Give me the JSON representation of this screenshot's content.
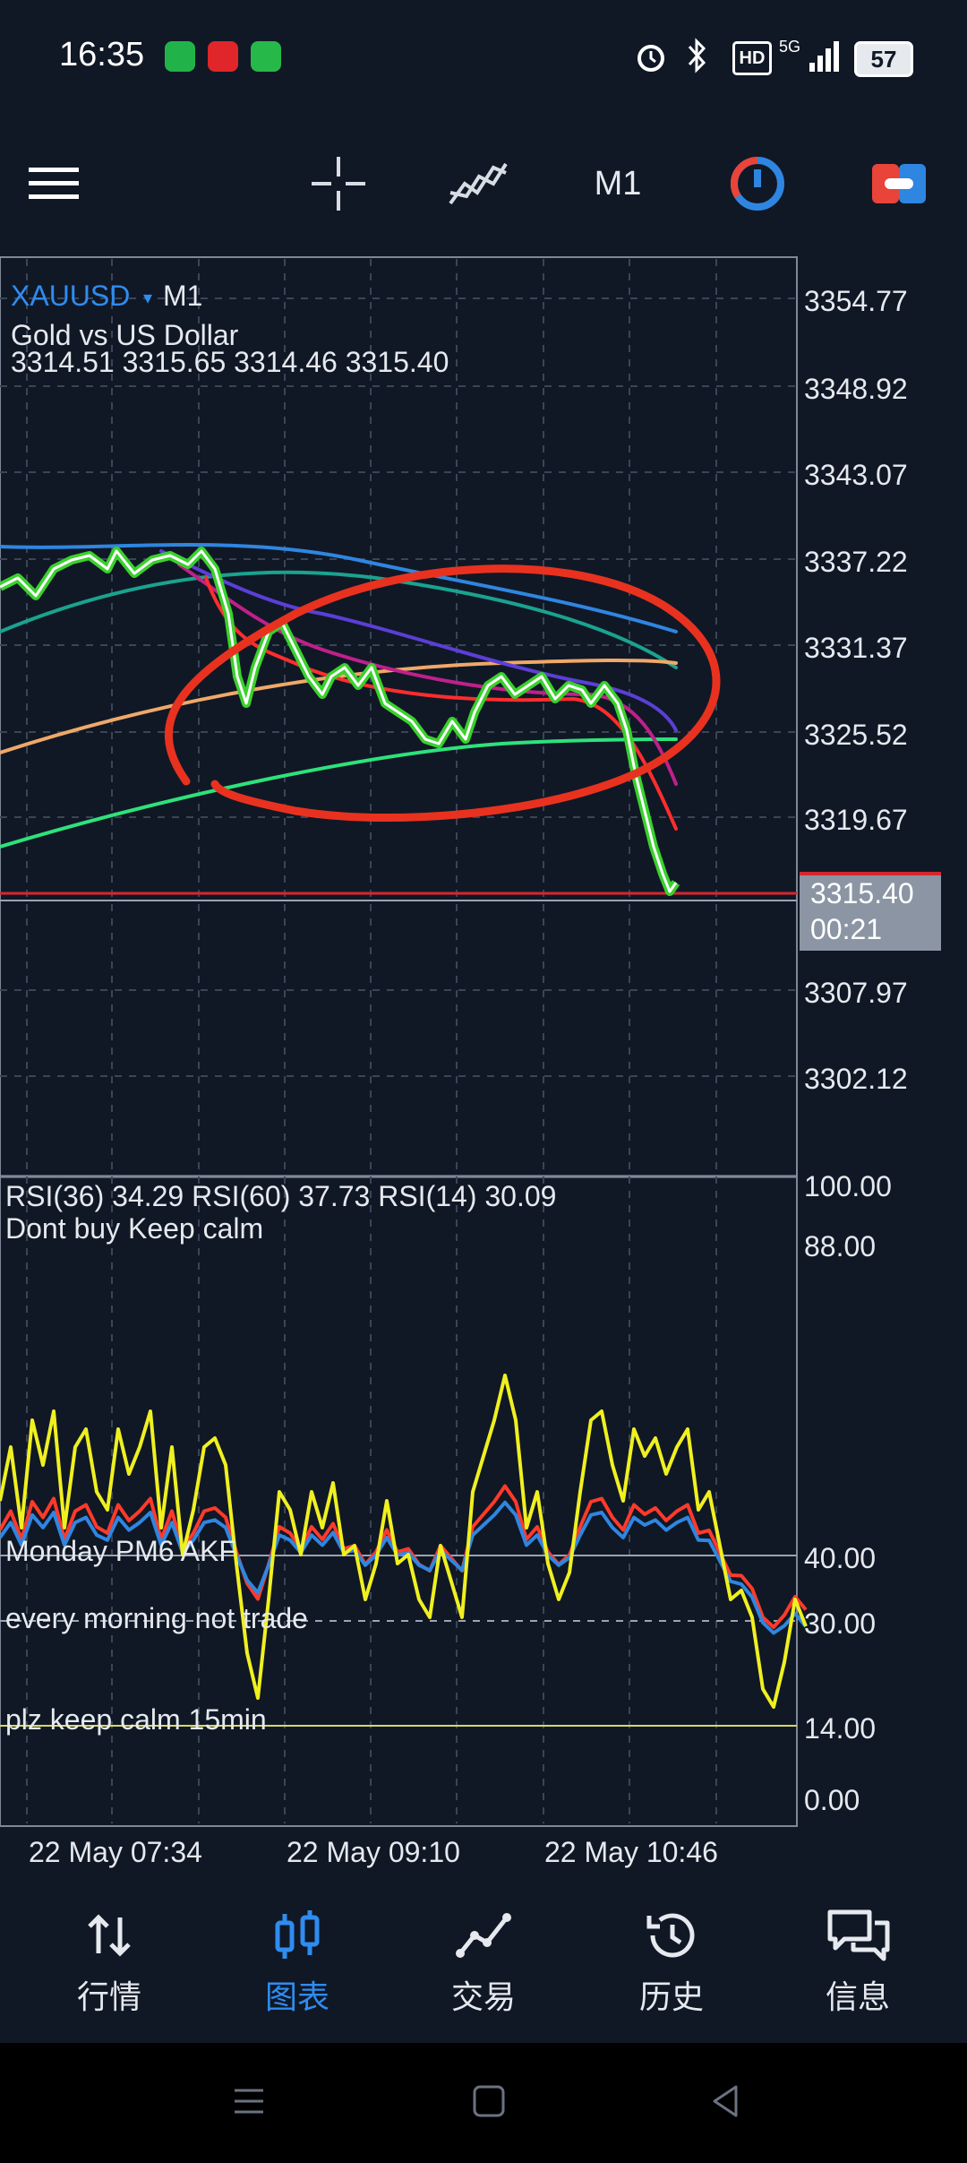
{
  "status_bar": {
    "time": "16:35",
    "battery": "57",
    "network": "5G",
    "hd_badge": "HD"
  },
  "toolbar": {
    "menu_icon": "hamburger-icon",
    "crosshair_icon": "crosshair-icon",
    "indicators_icon": "indicators-icon",
    "timeframe": "M1",
    "objects_icon": "clock-objects-icon",
    "trade_icon": "one-click-trade-icon"
  },
  "chart": {
    "symbol": "XAUUSD",
    "symbol_caret": "▾",
    "timeframe": "M1",
    "description": "Gold vs US Dollar",
    "ohlc": "3314.51 3315.65 3314.46 3315.40",
    "price_axis": [
      "3354.77",
      "3348.92",
      "3343.07",
      "3337.22",
      "3331.37",
      "3325.52",
      "3319.67",
      "3307.97",
      "3302.12"
    ],
    "current_price": "3315.40",
    "countdown": "00:21",
    "time_axis": [
      "22 May 07:34",
      "22 May 09:10",
      "22 May 10:46"
    ],
    "colors": {
      "background": "#101826",
      "grid": "#3a4556",
      "price_line": "#d6262f",
      "bid_line": "#9aa4b2",
      "candle": "#3ad12d",
      "ma_white": "#ffffff",
      "ma_red": "#ff2d2d",
      "ma_magenta": "#c0208a",
      "ma_purple": "#5b3fd6",
      "ma_blue": "#2f86e0",
      "ma_teal": "#1aa38e",
      "ma_orange": "#f0a868",
      "ma_green": "#2ee27a",
      "annotation_ellipse": "#e8321f",
      "current_price_box": "#8b95a3"
    }
  },
  "rsi_panel": {
    "header": "RSI(36) 34.29 RSI(60) 37.73 RSI(14) 30.09",
    "note": "Dont buy Keep calm",
    "levels": [
      "100.00",
      "88.00",
      "40.00",
      "30.00",
      "14.00",
      "0.00"
    ],
    "annotations": [
      "Monday PM6 AKF",
      "every morning not trade",
      "plz keep calm 15min"
    ],
    "colors": {
      "rsi14": "#f0f020",
      "rsi36": "#ff3a2a",
      "rsi60": "#2f86e0",
      "level_line": "#d8d860"
    }
  },
  "bottom_nav": {
    "items": [
      {
        "label": "行情",
        "icon": "quotes-icon",
        "active": false
      },
      {
        "label": "图表",
        "icon": "chart-icon",
        "active": true
      },
      {
        "label": "交易",
        "icon": "trade-icon",
        "active": false
      },
      {
        "label": "历史",
        "icon": "history-icon",
        "active": false
      },
      {
        "label": "信息",
        "icon": "messages-icon",
        "active": false
      }
    ]
  },
  "system_bar": {
    "icons": [
      "menu-icon",
      "home-icon",
      "back-icon"
    ]
  }
}
